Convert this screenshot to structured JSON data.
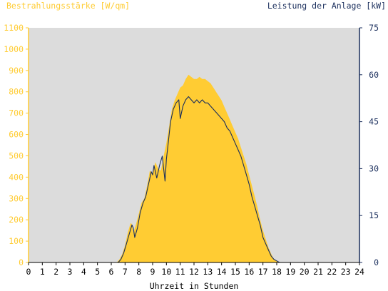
{
  "chart_data": {
    "type": "area",
    "left_axis_title": "Bestrahlungsstärke [W/qm]",
    "right_axis_title": "Leistung der Anlage [kW]",
    "xlabel": "Uhrzeit in Stunden",
    "xlim": [
      0,
      24
    ],
    "ylim_left": [
      0,
      1100
    ],
    "ylim_right": [
      0,
      75
    ],
    "x_ticks": [
      "0",
      "1",
      "2",
      "3",
      "4",
      "5",
      "6",
      "7",
      "8",
      "9",
      "10",
      "11",
      "12",
      "13",
      "14",
      "15",
      "16",
      "17",
      "18",
      "19",
      "20",
      "21",
      "22",
      "23",
      "24"
    ],
    "left_ticks": [
      "0",
      "100",
      "200",
      "300",
      "400",
      "500",
      "600",
      "700",
      "800",
      "900",
      "1000",
      "1100"
    ],
    "right_ticks": [
      "0",
      "15",
      "30",
      "45",
      "60",
      "75"
    ],
    "grid": false,
    "colors": {
      "irradiance": "#ffcc33",
      "power": "#1a2e5c",
      "plot_background": "#dcdcdc",
      "left_axis": "#ffcc33",
      "right_axis": "#1a2e5c"
    },
    "series": [
      {
        "axis": "left",
        "style": "filled-area",
        "x": [
          0,
          6.4,
          6.6,
          6.8,
          7.0,
          7.2,
          7.4,
          7.5,
          7.6,
          7.8,
          8.0,
          8.2,
          8.4,
          8.6,
          8.8,
          9.0,
          9.2,
          9.4,
          9.6,
          9.8,
          10.0,
          10.2,
          10.4,
          10.6,
          10.8,
          11.0,
          11.2,
          11.4,
          11.6,
          11.8,
          12.0,
          12.2,
          12.4,
          12.6,
          12.8,
          13.0,
          13.2,
          13.4,
          13.6,
          13.8,
          14.0,
          14.2,
          14.4,
          14.6,
          14.8,
          15.0,
          15.2,
          15.4,
          15.6,
          15.8,
          16.0,
          16.2,
          16.4,
          16.6,
          16.8,
          17.0,
          17.2,
          17.4,
          17.6,
          17.8,
          18.0,
          18.2,
          18.4,
          24
        ],
        "values": [
          0,
          0,
          15,
          40,
          80,
          140,
          185,
          180,
          140,
          180,
          230,
          280,
          300,
          360,
          430,
          420,
          470,
          440,
          430,
          500,
          560,
          640,
          720,
          760,
          790,
          820,
          830,
          860,
          880,
          870,
          860,
          860,
          870,
          860,
          860,
          850,
          840,
          820,
          800,
          780,
          760,
          730,
          700,
          670,
          640,
          610,
          580,
          540,
          500,
          460,
          410,
          360,
          310,
          260,
          200,
          150,
          110,
          70,
          40,
          15,
          5,
          2,
          0,
          0
        ]
      },
      {
        "axis": "right",
        "style": "line",
        "x": [
          0,
          6.5,
          6.7,
          6.9,
          7.1,
          7.3,
          7.5,
          7.6,
          7.7,
          7.9,
          8.1,
          8.3,
          8.5,
          8.7,
          8.9,
          9.0,
          9.1,
          9.3,
          9.5,
          9.7,
          9.9,
          10.0,
          10.1,
          10.3,
          10.5,
          10.7,
          10.9,
          11.0,
          11.2,
          11.4,
          11.6,
          11.8,
          12.0,
          12.2,
          12.4,
          12.6,
          12.8,
          13.0,
          13.2,
          13.4,
          13.6,
          13.8,
          14.0,
          14.2,
          14.4,
          14.6,
          14.8,
          15.0,
          15.2,
          15.4,
          15.6,
          15.8,
          16.0,
          16.2,
          16.4,
          16.6,
          16.8,
          17.0,
          17.2,
          17.4,
          17.6,
          17.8,
          18.0,
          18.2,
          18.4,
          24
        ],
        "values": [
          0,
          0,
          1,
          3,
          6,
          9,
          12,
          11,
          8,
          11,
          16,
          19,
          21,
          25,
          29,
          28,
          31,
          27,
          31,
          34,
          26,
          33,
          37,
          45,
          49,
          51,
          52,
          46,
          50,
          52,
          53,
          52,
          51,
          52,
          51,
          52,
          51,
          51,
          50,
          49,
          48,
          47,
          46,
          45,
          43,
          42,
          40,
          38,
          36,
          34,
          31,
          28,
          25,
          21,
          18,
          15,
          12,
          8,
          6,
          4,
          2,
          1,
          0.5,
          0,
          0,
          0
        ]
      }
    ]
  }
}
